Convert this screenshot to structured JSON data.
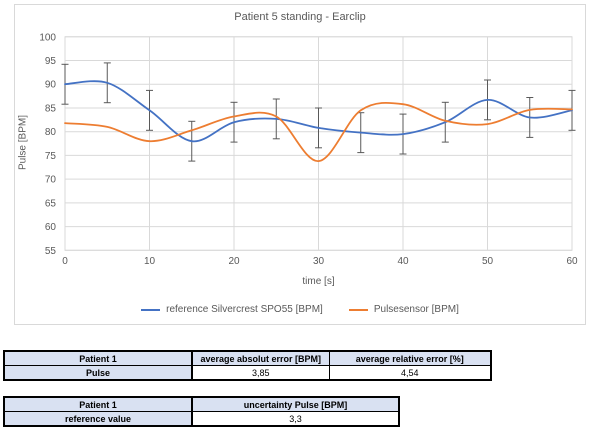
{
  "chart": {
    "title": "Patient 5  standing - Earclip",
    "ylabel": "Pulse [BPM]",
    "xlabel": "time [s]",
    "legend": [
      {
        "label": "reference Silvercrest SPO55 [BPM]",
        "color": "#4472C4"
      },
      {
        "label": "Pulsesensor [BPM]",
        "color": "#ED7D31"
      }
    ]
  },
  "chart_data": {
    "type": "line",
    "title": "Patient 5  standing - Earclip",
    "xlabel": "time [s]",
    "ylabel": "Pulse [BPM]",
    "x": [
      0,
      5,
      10,
      15,
      20,
      25,
      30,
      35,
      40,
      45,
      50,
      55,
      60
    ],
    "series": [
      {
        "name": "reference Silvercrest SPO55 [BPM]",
        "color": "#4472C4",
        "values": [
          90,
          90.3,
          84.5,
          78,
          82,
          82.7,
          80.8,
          79.8,
          79.5,
          82,
          86.7,
          83,
          84.5
        ],
        "error_bar_half_width": 4.2
      },
      {
        "name": "Pulsesensor [BPM]",
        "color": "#ED7D31",
        "values": [
          81.8,
          81,
          78,
          80.3,
          83.2,
          83.2,
          73.8,
          84.5,
          85.8,
          82.3,
          81.6,
          84.6,
          84.7
        ]
      }
    ],
    "xlim": [
      0,
      60
    ],
    "ylim": [
      55,
      100
    ],
    "x_ticks": [
      0,
      10,
      20,
      30,
      40,
      50,
      60
    ],
    "y_ticks": [
      55,
      60,
      65,
      70,
      75,
      80,
      85,
      90,
      95,
      100
    ],
    "grid": true,
    "smooth_lines": true,
    "legend_position": "bottom"
  },
  "colors": {
    "grid": "#D9D9D9",
    "error_bar": "#595959",
    "axis_text": "#595959",
    "table_header_bg": "#D9E1F2"
  },
  "tables": [
    {
      "rows": [
        [
          "Patient 1",
          "average absolut error [BPM]",
          "average relative error [%]"
        ],
        [
          "Pulse",
          "3,85",
          "4,54"
        ]
      ]
    },
    {
      "rows": [
        [
          "Patient 1",
          "uncertainty Pulse [BPM]"
        ],
        [
          "reference value",
          "3,3"
        ]
      ]
    }
  ]
}
